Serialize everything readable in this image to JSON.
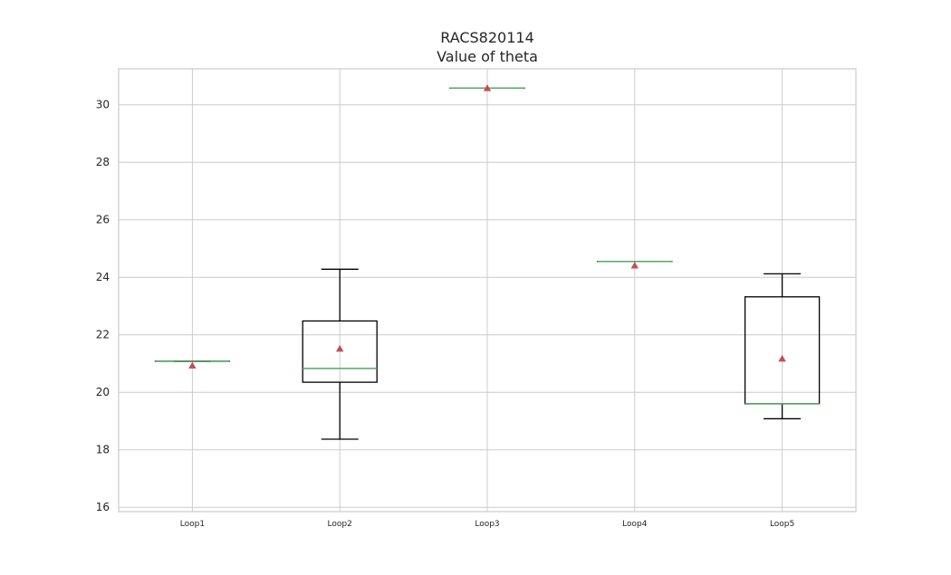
{
  "chart_data": {
    "type": "boxplot",
    "title": "RACS820114",
    "subtitle": "Value of theta",
    "xlabel": "",
    "ylabel": "",
    "ylim": [
      15.85,
      31.25
    ],
    "yticks": [
      16,
      18,
      20,
      22,
      24,
      26,
      28,
      30
    ],
    "grid": true,
    "categories": [
      "Loop1",
      "Loop2",
      "Loop3",
      "Loop4",
      "Loop5"
    ],
    "boxes": [
      {
        "label": "Loop1",
        "whislo": 21.08,
        "q1": 21.08,
        "med": 21.08,
        "q3": 21.08,
        "whishi": 21.08,
        "mean": 20.93
      },
      {
        "label": "Loop2",
        "whislo": 18.37,
        "q1": 20.35,
        "med": 20.83,
        "q3": 22.48,
        "whishi": 24.28,
        "mean": 21.52
      },
      {
        "label": "Loop3",
        "whislo": 30.58,
        "q1": 30.58,
        "med": 30.58,
        "q3": 30.58,
        "whishi": 30.58,
        "mean": 30.58
      },
      {
        "label": "Loop4",
        "whislo": 24.55,
        "q1": 24.55,
        "med": 24.55,
        "q3": 24.55,
        "whishi": 24.55,
        "mean": 24.41
      },
      {
        "label": "Loop5",
        "whislo": 19.08,
        "q1": 19.6,
        "med": 19.6,
        "q3": 23.32,
        "whishi": 24.12,
        "mean": 21.17
      }
    ],
    "colors": {
      "box": "#000000",
      "median": "#55a868",
      "mean": "#c44e52",
      "grid": "#cccccc",
      "frame": "#cccccc"
    }
  }
}
